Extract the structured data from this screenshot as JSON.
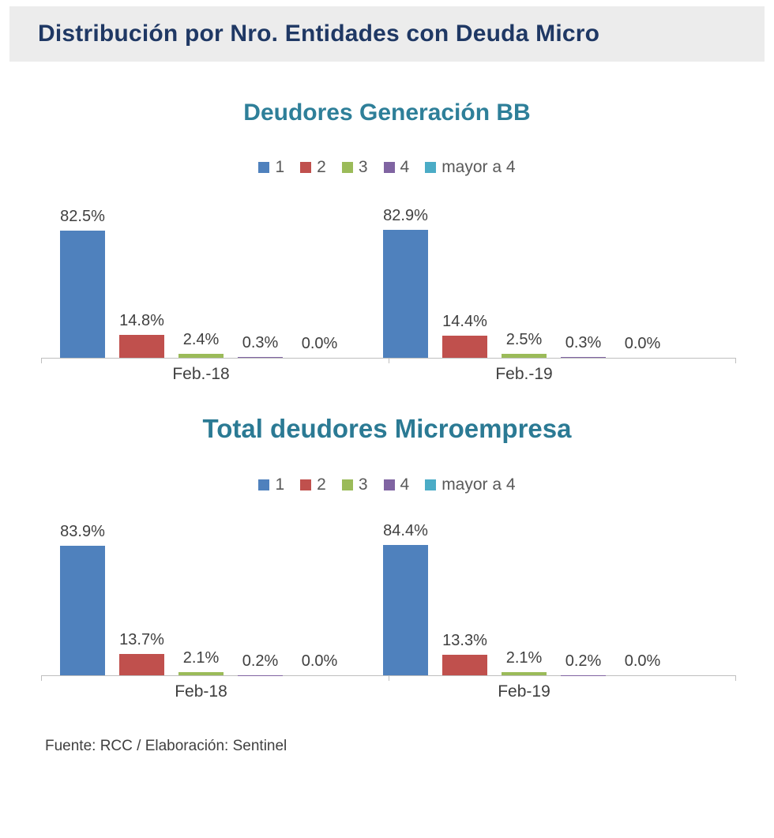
{
  "header": {
    "title": "Distribución por Nro. Entidades con Deuda Micro"
  },
  "colors": {
    "series": [
      "#4F81BD",
      "#C0504D",
      "#9BBB59",
      "#8064A2",
      "#4BACC6"
    ],
    "header_bg": "#ECECEC",
    "header_text": "#1F3864",
    "chart_title": "#2E7F99",
    "value_label": "#3F3F3F",
    "legend_text": "#595959",
    "axis": "#BFBFBF"
  },
  "chart_data": [
    {
      "type": "bar",
      "title": "Deudores Generación BB",
      "legend": [
        "1",
        "2",
        "3",
        "4",
        "mayor a 4"
      ],
      "legend_position": "top",
      "categories": [
        "Feb.-18",
        "Feb.-19"
      ],
      "series": [
        {
          "name": "1",
          "values": [
            82.5,
            82.9
          ]
        },
        {
          "name": "2",
          "values": [
            14.8,
            14.4
          ]
        },
        {
          "name": "3",
          "values": [
            2.4,
            2.5
          ]
        },
        {
          "name": "4",
          "values": [
            0.3,
            0.3
          ]
        },
        {
          "name": "mayor a 4",
          "values": [
            0.0,
            0.0
          ]
        }
      ],
      "value_label_format": "percent_one_decimal",
      "ylim": [
        0,
        100
      ],
      "grid": false
    },
    {
      "type": "bar",
      "title": "Total deudores Microempresa",
      "legend": [
        "1",
        "2",
        "3",
        "4",
        "mayor a 4"
      ],
      "legend_position": "top",
      "categories": [
        "Feb-18",
        "Feb-19"
      ],
      "series": [
        {
          "name": "1",
          "values": [
            83.9,
            84.4
          ]
        },
        {
          "name": "2",
          "values": [
            13.7,
            13.3
          ]
        },
        {
          "name": "3",
          "values": [
            2.1,
            2.1
          ]
        },
        {
          "name": "4",
          "values": [
            0.2,
            0.2
          ]
        },
        {
          "name": "mayor a 4",
          "values": [
            0.0,
            0.0
          ]
        }
      ],
      "value_label_format": "percent_one_decimal",
      "ylim": [
        0,
        100
      ],
      "grid": false
    }
  ],
  "footer": {
    "source": "Fuente: RCC / Elaboración: Sentinel"
  }
}
